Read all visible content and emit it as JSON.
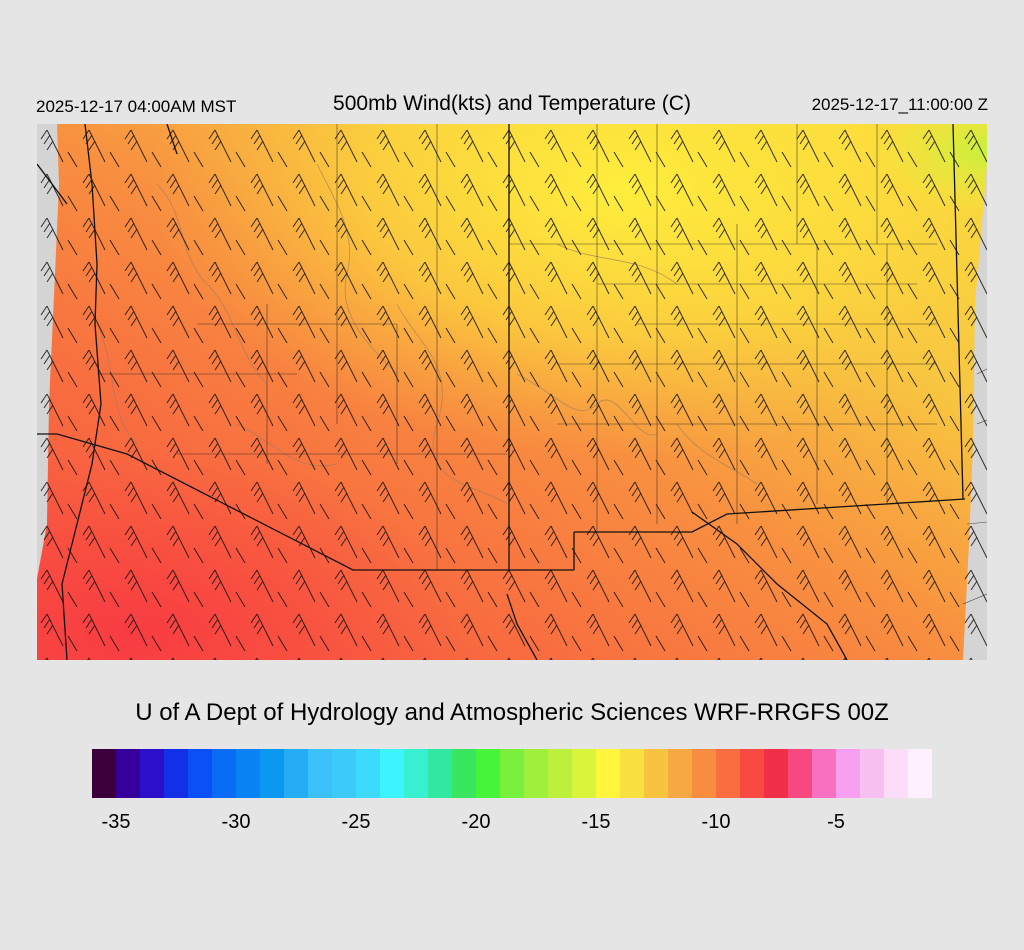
{
  "header": {
    "local_time": "2025-12-17 04:00AM MST",
    "title": "500mb Wind(kts) and Temperature (C)",
    "utc_time": "2025-12-17_11:00:00 Z"
  },
  "credit": "U of A Dept of Hydrology and Atmospheric Sciences WRF-RRGFS 00Z",
  "legend": {
    "colors": [
      "#3b003b",
      "#38009a",
      "#2a10c8",
      "#1230e6",
      "#0a50f5",
      "#0a6cf5",
      "#0a84f5",
      "#0a98f0",
      "#24acf5",
      "#3cc0fa",
      "#3ccafa",
      "#3cdaff",
      "#3cf4ff",
      "#36f0d0",
      "#30e8a0",
      "#3ae660",
      "#46f53a",
      "#78f03c",
      "#9ef03c",
      "#bcf03c",
      "#d8f53c",
      "#fff53c",
      "#f8e040",
      "#f8c440",
      "#f8a840",
      "#f88c40",
      "#f86e40",
      "#f84a40",
      "#f03048",
      "#f84880",
      "#f870c0",
      "#f8a0f0",
      "#f8c0f0",
      "#fcdcf8",
      "#fff0ff"
    ],
    "tick_labels": [
      "-35",
      "-30",
      "-25",
      "-20",
      "-15",
      "-10",
      "-5"
    ],
    "tick_values": [
      -35,
      -30,
      -25,
      -20,
      -15,
      -10,
      -5
    ],
    "min": -36,
    "max": -1
  }
}
